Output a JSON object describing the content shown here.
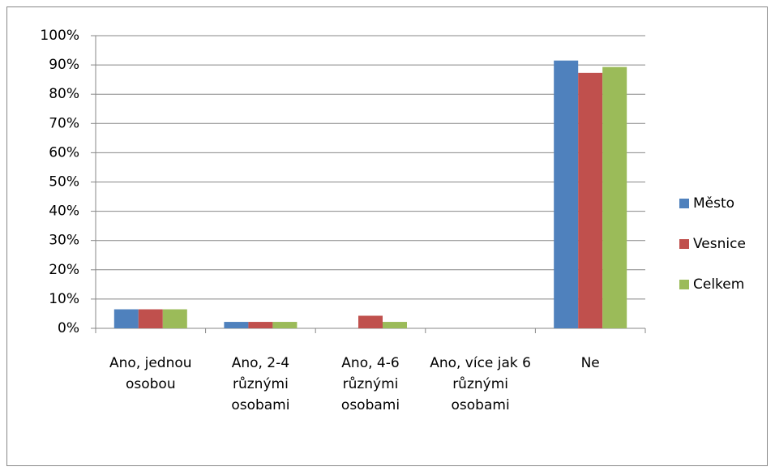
{
  "chart_data": {
    "type": "bar",
    "categories": [
      "Ano, jednou osobou",
      "Ano, 2-4 různými osobami",
      "Ano, 4-6 různými osobami",
      "Ano, více jak 6 různými osobami",
      "Ne"
    ],
    "series": [
      {
        "name": "Město",
        "color": "#4f81bd",
        "values": [
          6.5,
          2.2,
          0,
          0,
          91.5
        ]
      },
      {
        "name": "Vesnice",
        "color": "#c0504d",
        "values": [
          6.5,
          2.2,
          4.3,
          0,
          87.3
        ]
      },
      {
        "name": "Celkem",
        "color": "#9bbb59",
        "values": [
          6.5,
          2.2,
          2.2,
          0,
          89.3
        ]
      }
    ],
    "ylim": [
      0,
      100
    ],
    "yticks": [
      {
        "value": 0,
        "label": "0%"
      },
      {
        "value": 10,
        "label": "10%"
      },
      {
        "value": 20,
        "label": "20%"
      },
      {
        "value": 30,
        "label": "30%"
      },
      {
        "value": 40,
        "label": "40%"
      },
      {
        "value": 50,
        "label": "50%"
      },
      {
        "value": 60,
        "label": "60%"
      },
      {
        "value": 70,
        "label": "70%"
      },
      {
        "value": 80,
        "label": "80%"
      },
      {
        "value": 90,
        "label": "90%"
      },
      {
        "value": 100,
        "label": "100%"
      }
    ],
    "grid": true,
    "legend": "right"
  }
}
